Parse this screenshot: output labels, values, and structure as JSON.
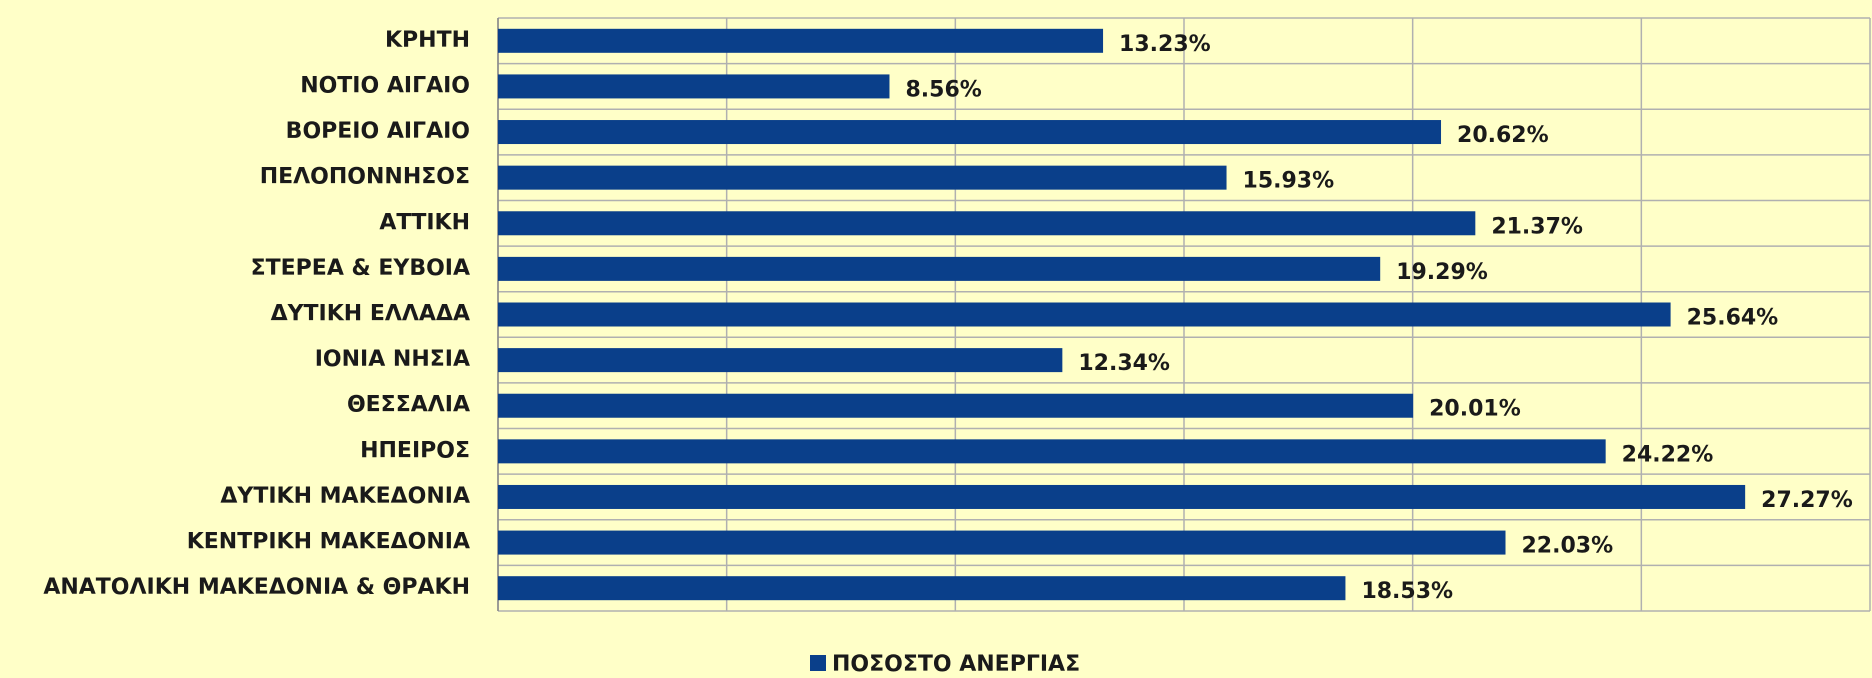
{
  "chart_data": {
    "type": "bar",
    "orientation": "horizontal",
    "categories": [
      "ΚΡΗΤΗ",
      "ΝΟΤΙΟ ΑΙΓΑΙΟ",
      "ΒΟΡΕΙΟ ΑΙΓΑΙΟ",
      "ΠΕΛΟΠΟΝΝΗΣΟΣ",
      "ΑΤΤΙΚΗ",
      "ΣΤΕΡΕΑ & ΕΥΒΟΙΑ",
      "ΔΥΤΙΚΗ ΕΛΛΑΔΑ",
      "ΙΟΝΙΑ ΝΗΣΙΑ",
      "ΘΕΣΣΑΛΙΑ",
      "ΗΠΕΙΡΟΣ",
      "ΔΥΤΙΚΗ ΜΑΚΕΔΟΝΙΑ",
      "ΚΕΝΤΡΙΚΗ ΜΑΚΕΔΟΝΙΑ",
      "ΑΝΑΤΟΛΙΚΗ ΜΑΚΕΔΟΝΙΑ & ΘΡΑΚΗ"
    ],
    "series": [
      {
        "name": "ΠΟΣΟΣΤΟ ΑΝΕΡΓΙΑΣ",
        "color": "#0a3f8a",
        "values": [
          13.23,
          8.56,
          20.62,
          15.93,
          21.37,
          19.29,
          25.64,
          12.34,
          20.01,
          24.22,
          27.27,
          22.03,
          18.53
        ],
        "value_labels": [
          "13.23%",
          "8.56%",
          "20.62%",
          "15.93%",
          "21.37%",
          "19.29%",
          "25.64%",
          "12.34%",
          "20.01%",
          "24.22%",
          "27.27%",
          "22.03%",
          "18.53%"
        ]
      }
    ],
    "xlim": [
      0,
      30
    ],
    "xticks": [
      0,
      5,
      10,
      15,
      20,
      25,
      30
    ],
    "grid": true,
    "legend": "bottom"
  }
}
